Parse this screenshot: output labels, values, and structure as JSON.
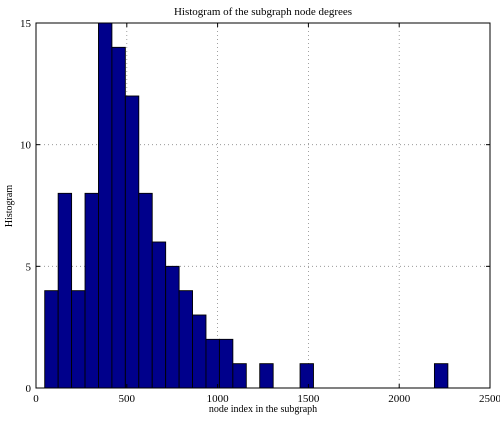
{
  "colors": {
    "bar_fill": "#00008b",
    "bar_edge": "#000000",
    "grid": "#8a8a8a",
    "background": "#ffffff"
  },
  "chart_data": {
    "type": "bar",
    "title": "Histogram of the subgraph node degrees",
    "xlabel": "node index in the subgraph",
    "ylabel": "Histogram",
    "xlim": [
      0,
      2500
    ],
    "ylim": [
      0,
      15
    ],
    "x_ticks": [
      0,
      500,
      1000,
      1500,
      2000,
      2500
    ],
    "y_ticks": [
      0,
      5,
      10,
      15
    ],
    "grid": true,
    "legend": "none",
    "bin_width": 74,
    "bin_centers": [
      85,
      159,
      233,
      307,
      381,
      455,
      529,
      603,
      677,
      751,
      825,
      899,
      973,
      1047,
      1121,
      1195,
      1269,
      1343,
      1417,
      1491,
      1565,
      1639,
      1713,
      1787,
      1861,
      1935,
      2009,
      2083,
      2157,
      2231
    ],
    "values": [
      4,
      8,
      4,
      8,
      15,
      14,
      12,
      8,
      6,
      5,
      4,
      3,
      2,
      2,
      1,
      0,
      1,
      0,
      0,
      1,
      0,
      0,
      0,
      0,
      0,
      0,
      0,
      0,
      0,
      1
    ]
  }
}
